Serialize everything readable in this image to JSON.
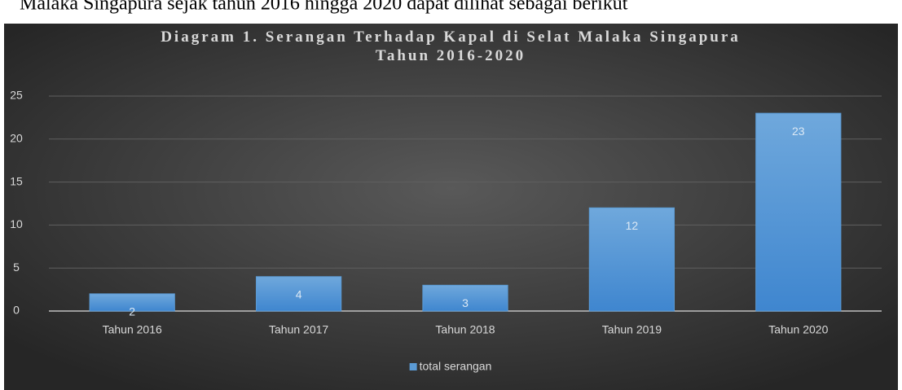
{
  "caption": "Malaka Singapura sejak tahun 2016 hingga 2020 dapat dilihat sebagai berikut",
  "chart_data": {
    "type": "bar",
    "title": "Diagram 1. Serangan Terhadap Kapal di Selat Malaka Singapura Tahun 2016-2020",
    "categories": [
      "Tahun 2016",
      "Tahun 2017",
      "Tahun 2018",
      "Tahun 2019",
      "Tahun 2020"
    ],
    "series": [
      {
        "name": "total serangan",
        "color": "#5b9bd5",
        "values": [
          2,
          4,
          3,
          12,
          23
        ]
      }
    ],
    "ylim": [
      0,
      25
    ],
    "yticks": [
      0,
      5,
      10,
      15,
      20,
      25
    ],
    "grid": true,
    "legend": "bottom"
  }
}
